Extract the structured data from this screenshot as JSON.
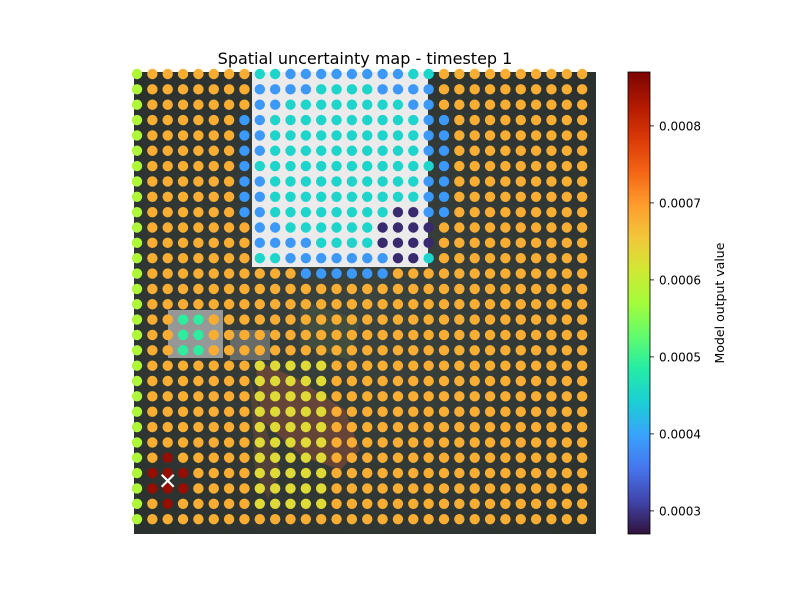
{
  "chart_data": {
    "type": "scatter",
    "title": "Spatial uncertainty map - timestep 1",
    "xlabel": "",
    "ylabel": "",
    "axes_visible": false,
    "background": "dark aerial map image",
    "grid": {
      "columns": 30,
      "rows": 30
    },
    "colormap": "turbo",
    "colorbar": {
      "label": "Model output value",
      "range": [
        0.00027,
        0.00087
      ],
      "ticks": [
        0.0003,
        0.0004,
        0.0005,
        0.0006,
        0.0007,
        0.0008
      ],
      "tick_labels": [
        "0.0003",
        "0.0004",
        "0.0005",
        "0.0006",
        "0.0007",
        "0.0008"
      ]
    },
    "baseline_value": 0.00068,
    "regions": [
      {
        "shape": "rect",
        "col_range": [
          8,
          19
        ],
        "row_range": [
          0,
          12
        ],
        "value": 0.00045,
        "note": "large white patch, cyan values"
      },
      {
        "shape": "ring",
        "center": [
          13.5,
          6
        ],
        "radius": 6.5,
        "value": 0.00039
      },
      {
        "shape": "circle",
        "center": [
          17.5,
          10.5
        ],
        "radius": 1.6,
        "value": 0.00029
      },
      {
        "shape": "circle",
        "center": [
          3.5,
          17.3
        ],
        "radius": 1.4,
        "value": 0.00049,
        "note": "small white patch"
      },
      {
        "shape": "circle",
        "center": [
          2,
          26.5
        ],
        "radius": 1.5,
        "value": 0.00085,
        "note": "dark red cluster around marker"
      },
      {
        "shape": "band",
        "col_range": [
          8,
          12
        ],
        "row_range": [
          19,
          28
        ],
        "value": 0.00063
      }
    ],
    "markers": [
      {
        "col": 2,
        "row": 26.5,
        "symbol": "x",
        "color": "#ffffff"
      }
    ],
    "colors": {
      "turbo_stops": [
        "#30123b",
        "#4145ab",
        "#4675ed",
        "#39a2fc",
        "#1bcfd4",
        "#24eca6",
        "#61fc6c",
        "#a4fc3b",
        "#d1e834",
        "#f3c63a",
        "#fe9b2d",
        "#f36315",
        "#d93806",
        "#b11901",
        "#7a0403"
      ]
    }
  }
}
